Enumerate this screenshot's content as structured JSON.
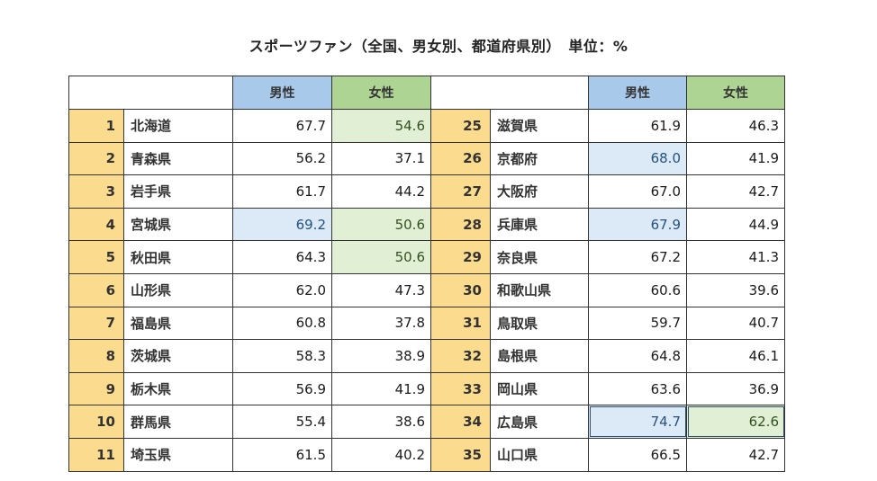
{
  "title": "スポーツファン（全国、男女別、都道府県別）　単位：%",
  "headers": {
    "male": "男性",
    "female": "女性"
  },
  "rows": [
    {
      "left": {
        "no": "1",
        "pref": "北海道",
        "male": "67.7",
        "female": "54.6",
        "hl_male": false,
        "hl_female": true
      },
      "right": {
        "no": "25",
        "pref": "滋賀県",
        "male": "61.9",
        "female": "46.3",
        "hl_male": false,
        "hl_female": false
      }
    },
    {
      "left": {
        "no": "2",
        "pref": "青森県",
        "male": "56.2",
        "female": "37.1",
        "hl_male": false,
        "hl_female": false
      },
      "right": {
        "no": "26",
        "pref": "京都府",
        "male": "68.0",
        "female": "41.9",
        "hl_male": true,
        "hl_female": false
      }
    },
    {
      "left": {
        "no": "3",
        "pref": "岩手県",
        "male": "61.7",
        "female": "44.2",
        "hl_male": false,
        "hl_female": false
      },
      "right": {
        "no": "27",
        "pref": "大阪府",
        "male": "67.0",
        "female": "42.7",
        "hl_male": false,
        "hl_female": false
      }
    },
    {
      "left": {
        "no": "4",
        "pref": "宮城県",
        "male": "69.2",
        "female": "50.6",
        "hl_male": true,
        "hl_female": true
      },
      "right": {
        "no": "28",
        "pref": "兵庫県",
        "male": "67.9",
        "female": "44.9",
        "hl_male": true,
        "hl_female": false
      }
    },
    {
      "left": {
        "no": "5",
        "pref": "秋田県",
        "male": "64.3",
        "female": "50.6",
        "hl_male": false,
        "hl_female": true
      },
      "right": {
        "no": "29",
        "pref": "奈良県",
        "male": "67.2",
        "female": "41.3",
        "hl_male": false,
        "hl_female": false
      }
    },
    {
      "left": {
        "no": "6",
        "pref": "山形県",
        "male": "62.0",
        "female": "47.3",
        "hl_male": false,
        "hl_female": false
      },
      "right": {
        "no": "30",
        "pref": "和歌山県",
        "male": "60.6",
        "female": "39.6",
        "hl_male": false,
        "hl_female": false
      }
    },
    {
      "left": {
        "no": "7",
        "pref": "福島県",
        "male": "60.8",
        "female": "37.8",
        "hl_male": false,
        "hl_female": false
      },
      "right": {
        "no": "31",
        "pref": "鳥取県",
        "male": "59.7",
        "female": "40.7",
        "hl_male": false,
        "hl_female": false
      }
    },
    {
      "left": {
        "no": "8",
        "pref": "茨城県",
        "male": "58.3",
        "female": "38.9",
        "hl_male": false,
        "hl_female": false
      },
      "right": {
        "no": "32",
        "pref": "島根県",
        "male": "64.8",
        "female": "46.1",
        "hl_male": false,
        "hl_female": false
      }
    },
    {
      "left": {
        "no": "9",
        "pref": "栃木県",
        "male": "56.9",
        "female": "41.9",
        "hl_male": false,
        "hl_female": false
      },
      "right": {
        "no": "33",
        "pref": "岡山県",
        "male": "63.6",
        "female": "36.9",
        "hl_male": false,
        "hl_female": false
      }
    },
    {
      "left": {
        "no": "10",
        "pref": "群馬県",
        "male": "55.4",
        "female": "38.6",
        "hl_male": false,
        "hl_female": false
      },
      "right": {
        "no": "34",
        "pref": "広島県",
        "male": "74.7",
        "female": "62.6",
        "hl_male": true,
        "hl_female": true
      }
    },
    {
      "left": {
        "no": "11",
        "pref": "埼玉県",
        "male": "61.5",
        "female": "40.2",
        "hl_male": false,
        "hl_female": false
      },
      "right": {
        "no": "35",
        "pref": "山口県",
        "male": "66.5",
        "female": "42.7",
        "hl_male": false,
        "hl_female": false
      }
    }
  ],
  "colors": {
    "header_male": "#a9c9ea",
    "header_female": "#aed494",
    "rank_cell": "#fbdb8e",
    "highlight_male": "#dce9f7",
    "highlight_female": "#e1f0d5"
  }
}
